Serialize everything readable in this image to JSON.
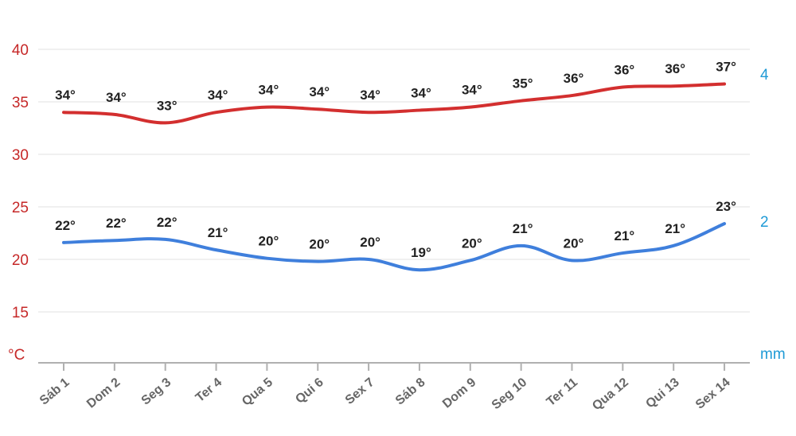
{
  "chart_data": {
    "type": "line",
    "categories": [
      "Sáb 1",
      "Dom 2",
      "Seg 3",
      "Ter 4",
      "Qua 5",
      "Qui 6",
      "Sex 7",
      "Sáb 8",
      "Dom 9",
      "Seg 10",
      "Ter 11",
      "Qua 12",
      "Qui 13",
      "Sex 14"
    ],
    "series": [
      {
        "values": [
          34,
          33.8,
          33,
          34,
          34.5,
          34.3,
          34,
          34.2,
          34.5,
          35.1,
          35.6,
          36.4,
          36.5,
          36.7
        ],
        "labels": [
          "34°",
          "34°",
          "33°",
          "34°",
          "34°",
          "34°",
          "34°",
          "34°",
          "34°",
          "35°",
          "36°",
          "36°",
          "36°",
          "37°"
        ],
        "color": "#d32f2f"
      },
      {
        "values": [
          21.6,
          21.8,
          21.9,
          20.9,
          20.1,
          19.8,
          20.0,
          19.0,
          19.9,
          21.3,
          19.9,
          20.6,
          21.3,
          23.4
        ],
        "labels": [
          "22°",
          "22°",
          "22°",
          "21°",
          "20°",
          "20°",
          "20°",
          "19°",
          "20°",
          "21°",
          "20°",
          "21°",
          "21°",
          "23°"
        ],
        "color": "#3f7fdc"
      }
    ],
    "y_left": {
      "ticks": [
        "40",
        "35",
        "30",
        "25",
        "20",
        "15"
      ],
      "tick_values": [
        40,
        35,
        30,
        25,
        20,
        15
      ],
      "unit": "°C",
      "range": [
        10,
        40
      ],
      "color": "#c62828"
    },
    "y_right": {
      "ticks": [
        "4",
        "2"
      ],
      "tick_values": [
        4,
        2
      ],
      "unit": "mm",
      "color": "#1e9ad6"
    },
    "grid": true,
    "xaxis_color": "#b0b0b0"
  }
}
